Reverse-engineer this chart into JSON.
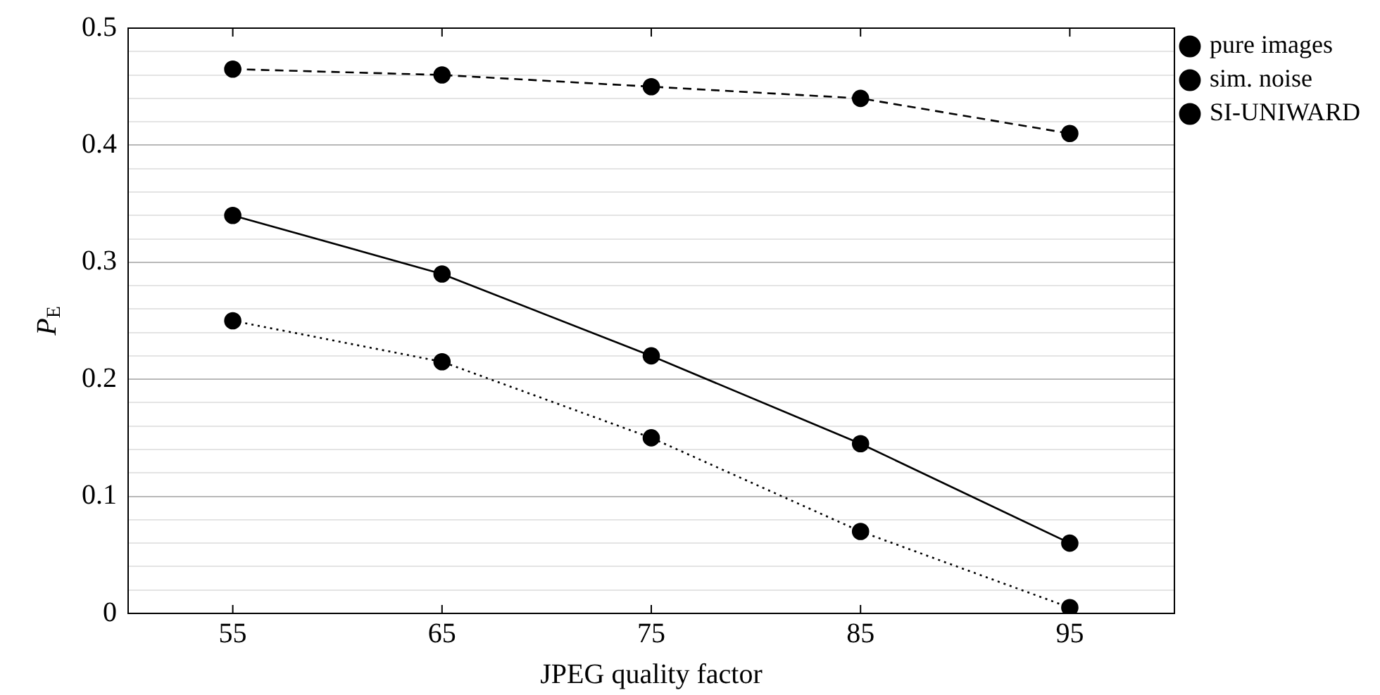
{
  "chart_data": {
    "type": "line",
    "xlabel": "JPEG quality factor",
    "ylabel": "P$_{E}$",
    "x": [
      55,
      65,
      75,
      85,
      95
    ],
    "xlim": [
      50,
      100
    ],
    "xticks": [
      55,
      65,
      75,
      85,
      95
    ],
    "ylim": [
      0,
      0.5
    ],
    "yticks": [
      0,
      {
        "value": 0.02,
        "label": null
      },
      {
        "value": 0.04,
        "label": null
      },
      {
        "value": 0.06,
        "label": null
      },
      {
        "value": 0.08,
        "label": null
      },
      0.1,
      {
        "value": 0.12,
        "label": null
      },
      {
        "value": 0.14,
        "label": null
      },
      {
        "value": 0.16,
        "label": null
      },
      {
        "value": 0.18,
        "label": null
      },
      0.2,
      {
        "value": 0.22,
        "label": null
      },
      {
        "value": 0.24,
        "label": null
      },
      {
        "value": 0.26,
        "label": null
      },
      {
        "value": 0.28,
        "label": null
      },
      0.3,
      {
        "value": 0.32,
        "label": null
      },
      {
        "value": 0.34,
        "label": null
      },
      {
        "value": 0.36,
        "label": null
      },
      {
        "value": 0.38,
        "label": null
      },
      0.4,
      {
        "value": 0.42,
        "label": null
      },
      {
        "value": 0.44,
        "label": null
      },
      {
        "value": 0.46,
        "label": null
      },
      {
        "value": 0.48,
        "label": null
      },
      0.5
    ],
    "grid": "y",
    "legend": "top right",
    "marker": "circle",
    "series": [
      {
        "name": "pure images",
        "color": "#000000",
        "line_style": "solid",
        "values": [
          0.34,
          0.29,
          0.22,
          0.145,
          0.06
        ]
      },
      {
        "name": "sim. noise",
        "color": "#000000",
        "line_style": "dashed",
        "values": [
          0.465,
          0.46,
          0.45,
          0.44,
          0.41
        ]
      },
      {
        "name": "SI-UNIWARD",
        "color": "#000000",
        "line_style": "dotted",
        "values": [
          0.25,
          0.215,
          0.15,
          0.07,
          0.005
        ]
      }
    ]
  }
}
